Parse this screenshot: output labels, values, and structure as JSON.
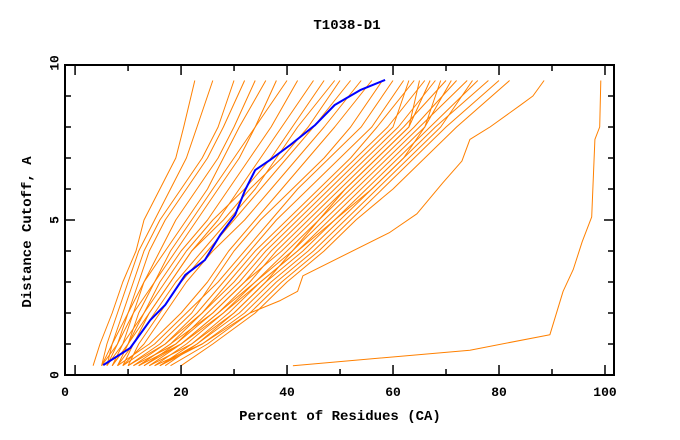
{
  "chart_data": {
    "type": "line",
    "title": "T1038-D1",
    "xlabel": "Percent of Residues (CA)",
    "ylabel": "Distance Cutoff, A",
    "xlim": [
      -1.9,
      101.7
    ],
    "ylim": [
      0,
      10
    ],
    "xticks": [
      0,
      20,
      40,
      60,
      80,
      100
    ],
    "yticks": [
      0,
      5,
      10
    ],
    "grid": false,
    "colors": {
      "models": "#ff8000",
      "highlight": "#0000ff"
    },
    "y_levels": [
      0.3,
      1,
      2,
      3,
      4,
      5,
      6,
      7,
      8,
      9.5
    ],
    "series": [
      {
        "x": [
          3.4,
          4.7,
          7,
          9,
          11.5,
          13,
          16,
          19,
          20.5,
          22.6
        ]
      },
      {
        "x": [
          5,
          6,
          8,
          10,
          12,
          15,
          18,
          21,
          23,
          26
        ]
      },
      {
        "x": [
          6,
          7,
          9,
          11,
          13,
          16,
          20,
          24,
          27,
          30
        ]
      },
      {
        "x": [
          5,
          7,
          10,
          12,
          14,
          17,
          21,
          25,
          28,
          32
        ]
      },
      {
        "x": [
          7,
          9,
          11,
          13,
          16,
          19,
          23,
          27,
          30,
          34
        ]
      },
      {
        "x": [
          6,
          8,
          10,
          13,
          17,
          21,
          25,
          28,
          31,
          36
        ]
      },
      {
        "x": [
          8,
          10,
          12,
          15,
          18,
          22,
          26,
          30,
          34,
          38
        ]
      },
      {
        "x": [
          5,
          8,
          11,
          15,
          19,
          23,
          27,
          31,
          34,
          40
        ]
      },
      {
        "x": [
          7,
          10,
          13,
          16,
          20,
          25,
          29,
          33,
          37,
          42
        ]
      },
      {
        "x": [
          9,
          11,
          14,
          18,
          22,
          27,
          31,
          35,
          39,
          45
        ]
      },
      {
        "x": [
          6,
          9,
          13,
          17,
          21,
          26,
          32,
          37,
          41,
          47
        ]
      },
      {
        "x": [
          8,
          11,
          15,
          19,
          24,
          29,
          34,
          38,
          42,
          49
        ]
      },
      {
        "x": [
          10,
          12,
          16,
          20,
          25,
          30,
          35,
          40,
          45,
          52
        ]
      },
      {
        "x": [
          7,
          10,
          14,
          18,
          22,
          28,
          33,
          39,
          44,
          50
        ]
      },
      {
        "x": [
          9,
          13,
          17,
          21,
          26,
          32,
          37,
          42,
          47,
          54
        ]
      },
      {
        "x": [
          8,
          14,
          20,
          25,
          29,
          34,
          39,
          44,
          49,
          56
        ]
      },
      {
        "x": [
          10,
          16,
          22,
          26,
          30,
          35,
          41,
          47,
          52,
          58
        ]
      },
      {
        "x": [
          9,
          15,
          21,
          27,
          32,
          37,
          42,
          48,
          54,
          60
        ]
      },
      {
        "x": [
          11,
          17,
          23,
          28,
          33,
          38,
          44,
          50,
          56,
          62
        ]
      },
      {
        "x": [
          12,
          18,
          24,
          29,
          34,
          40,
          46,
          52,
          57,
          64
        ]
      },
      {
        "x": [
          10,
          17,
          24,
          30,
          35,
          41,
          47,
          53,
          59,
          66
        ]
      },
      {
        "x": [
          13,
          19,
          25,
          31,
          36,
          42,
          48,
          54,
          60,
          63
        ]
      },
      {
        "x": [
          12,
          18,
          26,
          32,
          37,
          43,
          49,
          55,
          61,
          68
        ]
      },
      {
        "x": [
          14,
          20,
          27,
          33,
          38,
          44,
          50,
          56,
          62,
          70
        ]
      },
      {
        "x": [
          11,
          19,
          26,
          32,
          39,
          45,
          51,
          57,
          63,
          67
        ]
      },
      {
        "x": [
          15,
          21,
          28,
          34,
          40,
          46,
          52,
          58,
          64,
          72
        ]
      },
      {
        "x": [
          13,
          20,
          27,
          34,
          41,
          47,
          53,
          59,
          65,
          74
        ]
      },
      {
        "x": [
          16,
          22,
          29,
          35,
          42,
          48,
          54,
          60,
          66,
          71
        ]
      },
      {
        "x": [
          14,
          22,
          30,
          36,
          43,
          49,
          55,
          61,
          67,
          76
        ]
      },
      {
        "x": [
          17,
          23,
          31,
          37,
          44,
          50,
          56,
          62,
          68,
          78
        ]
      },
      {
        "x": [
          15,
          24,
          32,
          38,
          45,
          51,
          57,
          63,
          69,
          75
        ]
      },
      {
        "x": [
          18,
          25,
          33,
          39,
          46,
          52,
          58,
          64,
          70,
          80
        ]
      },
      {
        "x": [
          20,
          26,
          34,
          40,
          47,
          53,
          60,
          66,
          72,
          82
        ]
      },
      {
        "x": [
          12,
          20,
          28,
          35,
          42,
          49,
          56,
          62,
          66,
          69
        ]
      },
      {
        "x": [
          16,
          23,
          30,
          36,
          41,
          46,
          51,
          57,
          63,
          65
        ]
      },
      {
        "x": [
          16,
          24,
          33,
          38.7,
          42,
          43,
          59.4,
          64.5,
          69.4,
          73,
          74.5,
          78.3,
          84,
          86.4,
          88.5
        ],
        "y": [
          0.3,
          1,
          2,
          2.4,
          2.7,
          3.2,
          4.6,
          5.2,
          6.2,
          6.9,
          7.6,
          8.0,
          8.7,
          9.0,
          9.5
        ]
      },
      {
        "x": [
          41.1,
          74.5,
          89.6,
          92.1,
          94,
          95.7,
          97.5,
          98.1,
          99,
          99.2
        ],
        "y": [
          0.3,
          0.8,
          1.3,
          2.7,
          3.4,
          4.3,
          5.1,
          7.6,
          8.0,
          9.5
        ]
      },
      {
        "highlight": true,
        "x": [
          5.3,
          10.4,
          14.2,
          17,
          20.8,
          24.5,
          27.4,
          30.2,
          32.1,
          34,
          36.8,
          40.6,
          45.3,
          49,
          53.8,
          58.5
        ],
        "y": [
          0.32,
          0.87,
          1.77,
          2.26,
          3.23,
          3.71,
          4.52,
          5.16,
          5.97,
          6.61,
          6.94,
          7.42,
          8.06,
          8.71,
          9.19,
          9.52
        ]
      }
    ]
  }
}
